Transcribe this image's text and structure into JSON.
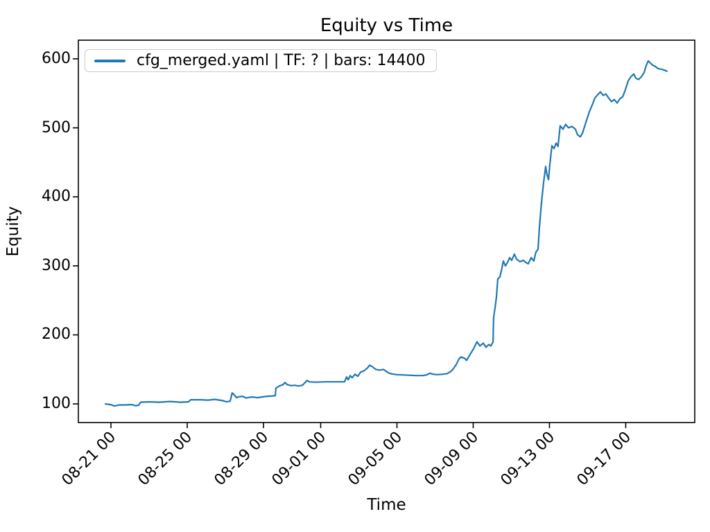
{
  "figure": {
    "background": "#ffffff",
    "axes_frame_color": "#000000",
    "legend_border_color": "#cccccc"
  },
  "legend": {
    "label": "cfg_merged.yaml | TF: ? | bars: 14400"
  },
  "chart_data": {
    "type": "line",
    "title": "Equity vs Time",
    "xlabel": "Time",
    "ylabel": "Equity",
    "legend_position": "upper left",
    "grid": false,
    "line_color": "#1f77b4",
    "line_width": 2.2,
    "xlim_days": [
      -1.71,
      30.62
    ],
    "ylim": [
      73,
      627
    ],
    "x_ticks": [
      {
        "label": "08-21 00",
        "t": 0
      },
      {
        "label": "08-25 00",
        "t": 4
      },
      {
        "label": "08-29 00",
        "t": 8
      },
      {
        "label": "09-01 00",
        "t": 11
      },
      {
        "label": "09-05 00",
        "t": 15
      },
      {
        "label": "09-09 00",
        "t": 19
      },
      {
        "label": "09-13 00",
        "t": 23
      },
      {
        "label": "09-17 00",
        "t": 27
      }
    ],
    "y_ticks": [
      100,
      200,
      300,
      400,
      500,
      600
    ],
    "series": [
      {
        "name": "cfg_merged.yaml | TF: ? | bars: 14400",
        "x_unit": "days since 08-21 00:00",
        "points": [
          [
            -0.29,
            100
          ],
          [
            -0.18,
            99.5
          ],
          [
            0,
            99
          ],
          [
            0.18,
            97
          ],
          [
            0.44,
            98.5
          ],
          [
            0.73,
            98.5
          ],
          [
            1.09,
            99
          ],
          [
            1.27,
            97.5
          ],
          [
            1.45,
            98
          ],
          [
            1.56,
            102.5
          ],
          [
            2.0,
            103
          ],
          [
            2.55,
            102.5
          ],
          [
            3.09,
            103.5
          ],
          [
            3.64,
            102.5
          ],
          [
            4.07,
            103
          ],
          [
            4.18,
            106
          ],
          [
            4.73,
            106
          ],
          [
            5.09,
            105.5
          ],
          [
            5.45,
            106.5
          ],
          [
            5.82,
            105
          ],
          [
            6.07,
            103
          ],
          [
            6.25,
            104
          ],
          [
            6.36,
            116
          ],
          [
            6.47,
            113
          ],
          [
            6.58,
            109
          ],
          [
            6.73,
            110.5
          ],
          [
            6.91,
            111
          ],
          [
            7.09,
            108.5
          ],
          [
            7.27,
            109.5
          ],
          [
            7.45,
            110
          ],
          [
            7.64,
            109
          ],
          [
            7.93,
            110
          ],
          [
            8.18,
            111
          ],
          [
            8.47,
            111.5
          ],
          [
            8.62,
            112
          ],
          [
            8.65,
            123
          ],
          [
            8.84,
            126
          ],
          [
            9.02,
            128
          ],
          [
            9.13,
            131
          ],
          [
            9.24,
            128
          ],
          [
            9.45,
            126.5
          ],
          [
            9.64,
            127
          ],
          [
            9.82,
            126
          ],
          [
            10.04,
            127
          ],
          [
            10.29,
            134
          ],
          [
            10.4,
            132
          ],
          [
            10.73,
            131.5
          ],
          [
            11.27,
            132
          ],
          [
            11.82,
            132
          ],
          [
            12.25,
            132
          ],
          [
            12.36,
            139
          ],
          [
            12.44,
            135
          ],
          [
            12.55,
            141
          ],
          [
            12.65,
            138
          ],
          [
            12.8,
            143
          ],
          [
            12.95,
            140
          ],
          [
            13.09,
            146
          ],
          [
            13.27,
            148
          ],
          [
            13.45,
            152
          ],
          [
            13.56,
            156
          ],
          [
            13.71,
            154
          ],
          [
            13.89,
            150
          ],
          [
            14.11,
            149
          ],
          [
            14.29,
            150
          ],
          [
            14.4,
            148
          ],
          [
            14.55,
            145
          ],
          [
            14.73,
            143.5
          ],
          [
            14.98,
            142.5
          ],
          [
            15.27,
            142
          ],
          [
            15.64,
            141.5
          ],
          [
            16.0,
            141
          ],
          [
            16.36,
            141
          ],
          [
            16.55,
            142
          ],
          [
            16.73,
            144.5
          ],
          [
            16.91,
            143
          ],
          [
            17.09,
            142.5
          ],
          [
            17.38,
            143
          ],
          [
            17.64,
            144
          ],
          [
            17.82,
            147
          ],
          [
            17.93,
            150
          ],
          [
            18.11,
            157
          ],
          [
            18.25,
            165
          ],
          [
            18.36,
            168
          ],
          [
            18.55,
            166
          ],
          [
            18.65,
            163
          ],
          [
            18.84,
            172
          ],
          [
            19.02,
            180
          ],
          [
            19.2,
            190
          ],
          [
            19.35,
            184
          ],
          [
            19.53,
            188
          ],
          [
            19.67,
            182
          ],
          [
            19.82,
            186
          ],
          [
            19.93,
            184
          ],
          [
            20.04,
            190
          ],
          [
            20.07,
            225
          ],
          [
            20.15,
            240
          ],
          [
            20.22,
            255
          ],
          [
            20.29,
            281
          ],
          [
            20.4,
            284
          ],
          [
            20.51,
            297
          ],
          [
            20.58,
            307
          ],
          [
            20.69,
            300
          ],
          [
            20.8,
            305
          ],
          [
            20.91,
            312
          ],
          [
            21.02,
            308
          ],
          [
            21.16,
            317
          ],
          [
            21.27,
            310
          ],
          [
            21.45,
            306
          ],
          [
            21.64,
            308
          ],
          [
            21.75,
            305
          ],
          [
            21.89,
            303
          ],
          [
            22.04,
            312
          ],
          [
            22.18,
            307
          ],
          [
            22.29,
            320
          ],
          [
            22.4,
            324
          ],
          [
            22.47,
            355
          ],
          [
            22.58,
            391
          ],
          [
            22.69,
            420
          ],
          [
            22.8,
            444
          ],
          [
            22.87,
            432
          ],
          [
            22.95,
            425
          ],
          [
            23.02,
            447
          ],
          [
            23.13,
            474
          ],
          [
            23.24,
            470
          ],
          [
            23.35,
            478
          ],
          [
            23.45,
            473
          ],
          [
            23.56,
            503
          ],
          [
            23.71,
            498
          ],
          [
            23.85,
            505
          ],
          [
            24.0,
            500
          ],
          [
            24.18,
            502
          ],
          [
            24.36,
            498
          ],
          [
            24.47,
            490
          ],
          [
            24.62,
            487
          ],
          [
            24.73,
            492
          ],
          [
            24.91,
            508
          ],
          [
            25.09,
            523
          ],
          [
            25.27,
            535
          ],
          [
            25.38,
            543
          ],
          [
            25.53,
            548
          ],
          [
            25.67,
            552
          ],
          [
            25.82,
            547
          ],
          [
            25.96,
            549
          ],
          [
            26.11,
            543
          ],
          [
            26.25,
            538
          ],
          [
            26.4,
            541
          ],
          [
            26.55,
            536
          ],
          [
            26.69,
            542
          ],
          [
            26.84,
            545
          ],
          [
            26.98,
            555
          ],
          [
            27.13,
            568
          ],
          [
            27.27,
            574
          ],
          [
            27.42,
            578
          ],
          [
            27.53,
            572
          ],
          [
            27.67,
            570
          ],
          [
            27.82,
            574
          ],
          [
            27.96,
            580
          ],
          [
            28.07,
            590
          ],
          [
            28.18,
            597
          ],
          [
            28.29,
            594
          ],
          [
            28.4,
            591
          ],
          [
            28.55,
            589
          ],
          [
            28.69,
            586
          ],
          [
            28.84,
            585
          ],
          [
            28.98,
            584
          ],
          [
            29.16,
            582
          ]
        ]
      }
    ]
  }
}
